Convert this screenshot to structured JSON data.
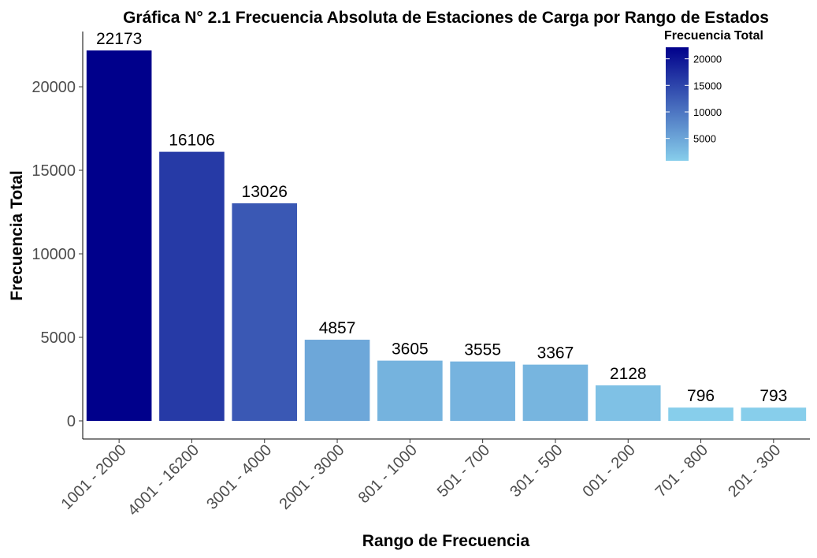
{
  "chart_data": {
    "type": "bar",
    "title": "Gráfica N° 2.1 Frecuencia Absoluta de Estaciones de Carga por Rango de Estados",
    "xlabel": "Rango de Frecuencia",
    "ylabel": "Frecuencia Total",
    "categories": [
      "1001 - 2000",
      "4001 - 16200",
      "3001 - 4000",
      "2001 - 3000",
      "801 - 1000",
      "501 - 700",
      "301 - 500",
      "001 - 200",
      "701 - 800",
      "201 - 300"
    ],
    "values": [
      22173,
      16106,
      13026,
      4857,
      3605,
      3555,
      3367,
      2128,
      796,
      793
    ],
    "value_labels": [
      "22173",
      "16106",
      "13026",
      "4857",
      "3605",
      "3555",
      "3367",
      "2128",
      "796",
      "793"
    ],
    "ylim": [
      0,
      23000
    ],
    "yticks": [
      0,
      5000,
      10000,
      15000,
      20000
    ],
    "ytick_labels": [
      "0",
      "5000",
      "10000",
      "15000",
      "20000"
    ],
    "grid": false,
    "legend": {
      "title": "Frecuencia Total",
      "placement": "top-right",
      "ticks": [
        5000,
        10000,
        15000,
        20000
      ],
      "tick_labels": [
        "5000",
        "10000",
        "15000",
        "20000"
      ],
      "range": [
        793,
        22173
      ]
    },
    "colors": {
      "low": "#87ceeb",
      "high": "#00008b"
    }
  }
}
